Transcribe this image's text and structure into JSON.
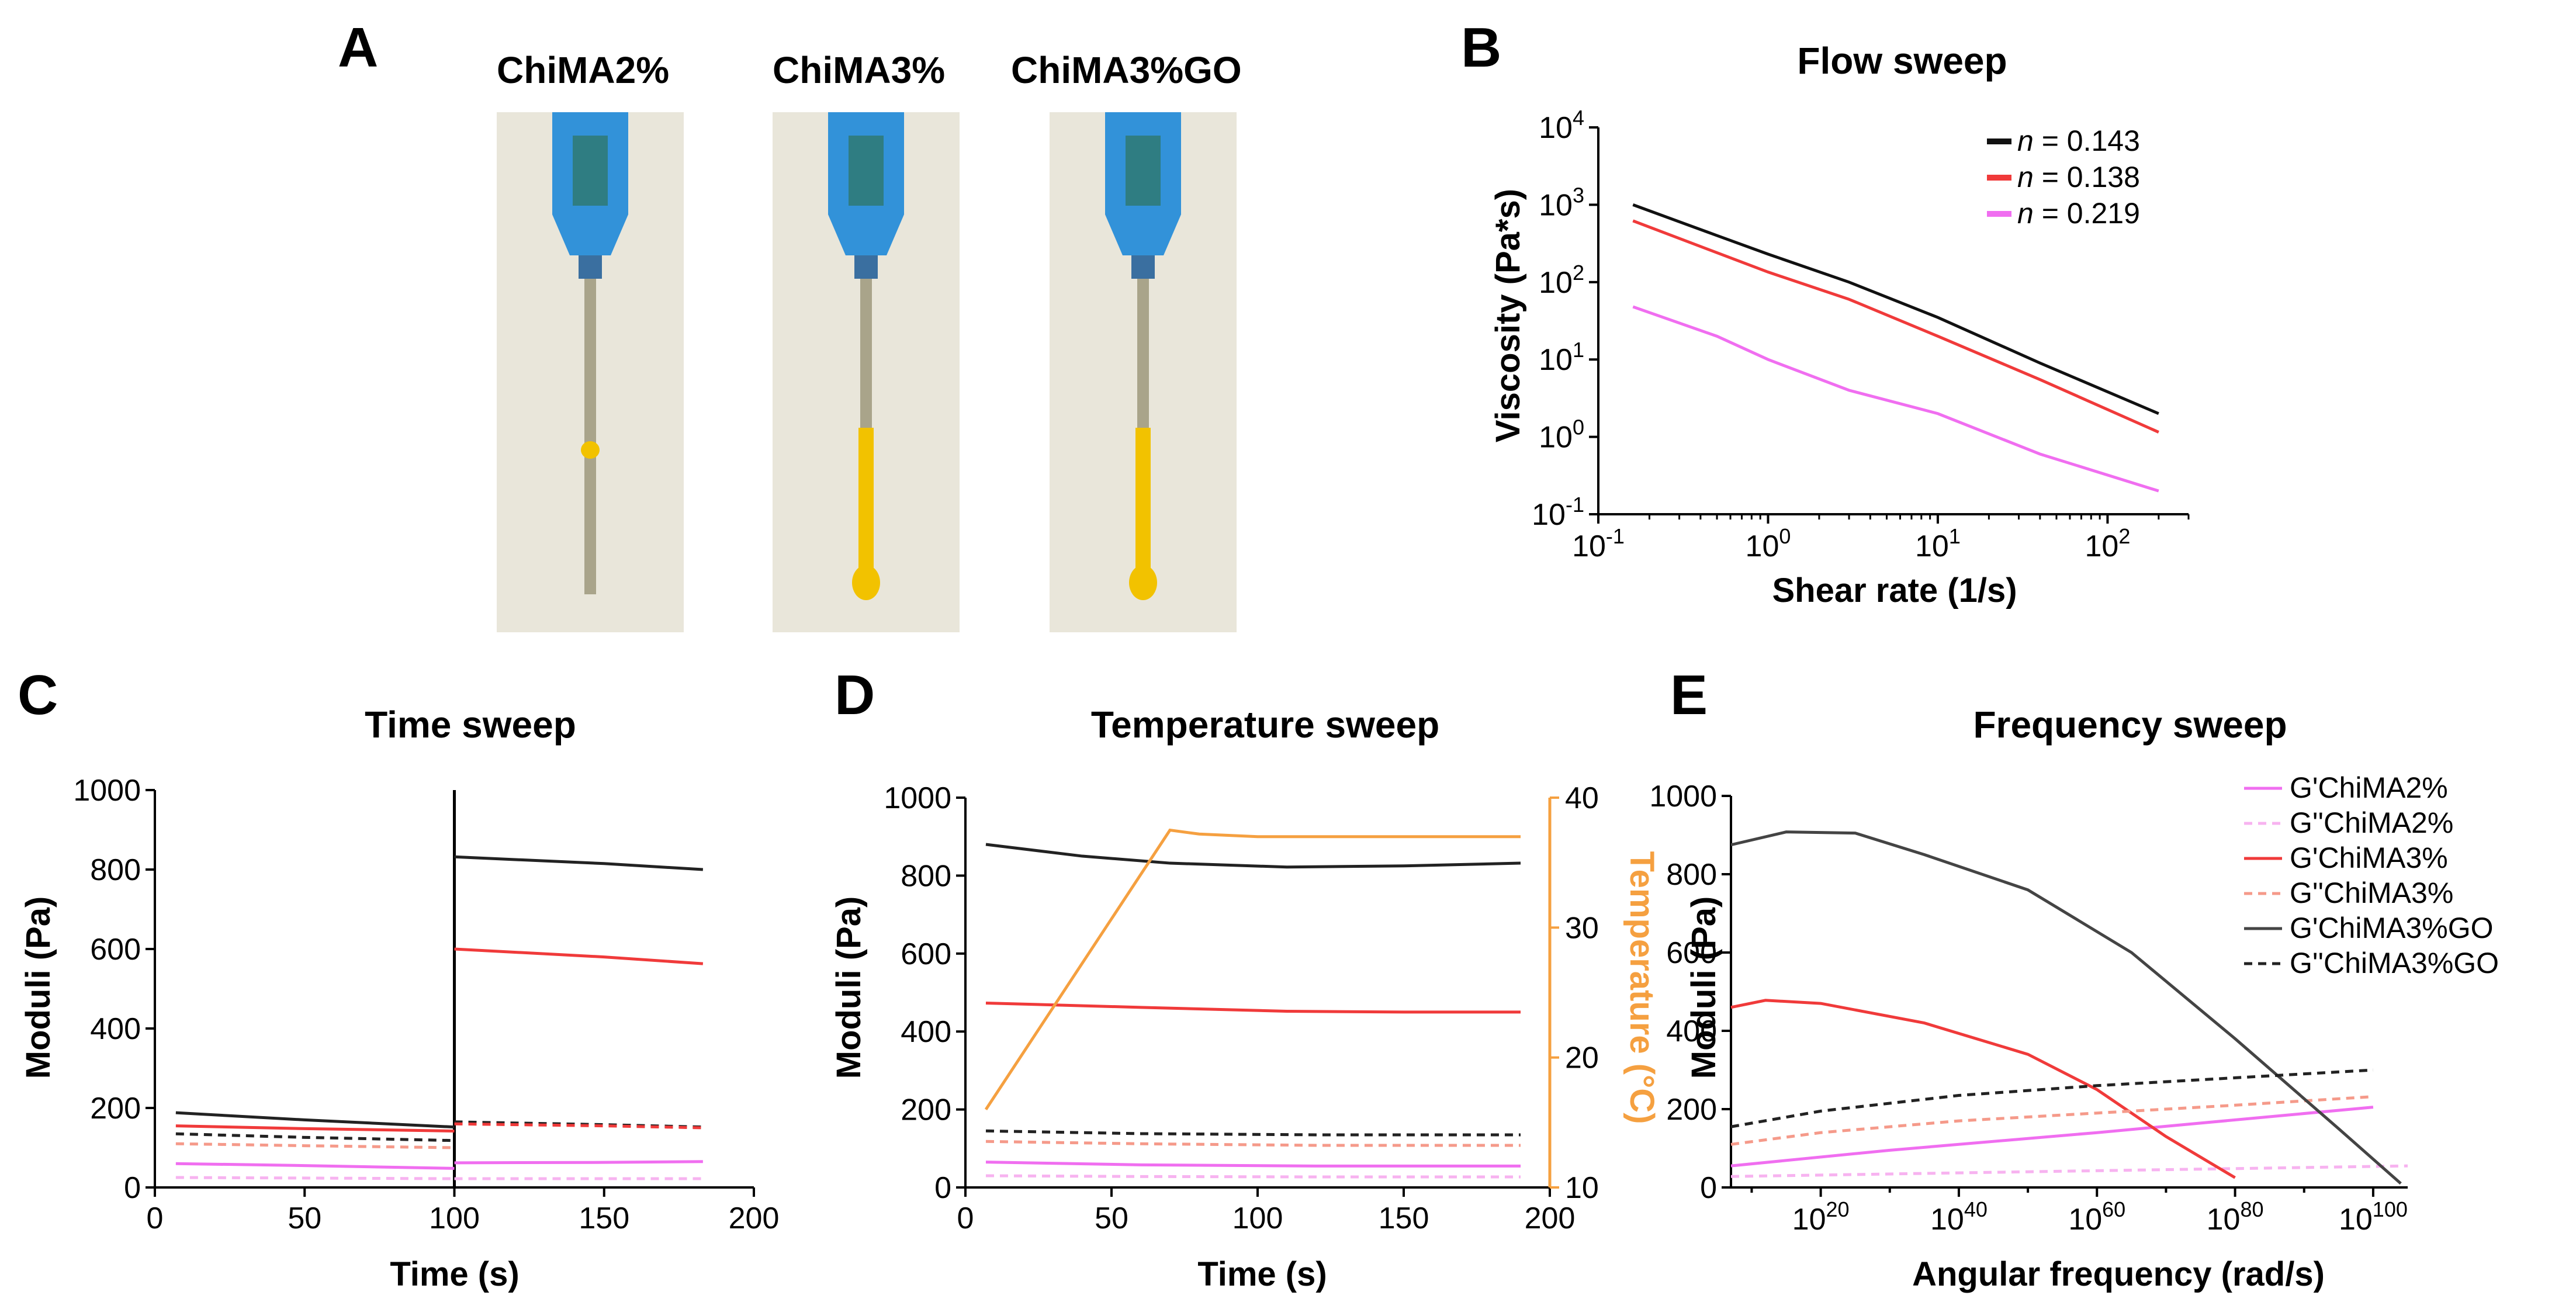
{
  "panels": {
    "A": "A",
    "B": "B",
    "C": "C",
    "D": "D",
    "E": "E"
  },
  "photos": {
    "labels": [
      "ChiMA2%",
      "ChiMA3%",
      "ChiMA3%GO"
    ],
    "gel_color": "#f2c200",
    "gel_amount": [
      0.02,
      0.95,
      0.95
    ],
    "syringe_color": "#1e88d8",
    "background_color": "#e9e6da"
  },
  "colors": {
    "black": "#222222",
    "red": "#f03a3a",
    "pink": "#f06ef0",
    "light_pink": "#f7b3f0",
    "light_red": "#f59a8a",
    "orange": "#f5a040"
  },
  "chart_data": [
    {
      "id": "B",
      "type": "line",
      "title": "Flow sweep",
      "xlabel": "Shear rate (1/s)",
      "ylabel": "Viscosity (Pa*s)",
      "x_scale": "log",
      "y_scale": "log",
      "xlim": [
        0.1,
        300
      ],
      "ylim": [
        0.1,
        10000
      ],
      "x_ticks": [
        {
          "base": "10",
          "exp": "-1"
        },
        {
          "base": "10",
          "exp": "0"
        },
        {
          "base": "10",
          "exp": "1"
        },
        {
          "base": "10",
          "exp": "2"
        }
      ],
      "y_ticks": [
        {
          "base": "10",
          "exp": "-1"
        },
        {
          "base": "10",
          "exp": "0"
        },
        {
          "base": "10",
          "exp": "1"
        },
        {
          "base": "10",
          "exp": "2"
        },
        {
          "base": "10",
          "exp": "3"
        },
        {
          "base": "10",
          "exp": "4"
        }
      ],
      "legend_position": "top-right",
      "series": [
        {
          "name": "n = 0.143",
          "name_parts": [
            "n",
            " = 0.143"
          ],
          "color": "#111111",
          "style": "solid",
          "x": [
            0.16,
            0.5,
            1,
            3,
            10,
            40,
            200
          ],
          "y": [
            1000,
            400,
            230,
            100,
            35,
            9,
            2
          ]
        },
        {
          "name": "n = 0.138",
          "name_parts": [
            "n",
            " = 0.138"
          ],
          "color": "#f03a3a",
          "style": "solid",
          "x": [
            0.16,
            0.5,
            1,
            3,
            10,
            40,
            200
          ],
          "y": [
            620,
            240,
            135,
            60,
            20,
            5.5,
            1.15
          ]
        },
        {
          "name": "n = 0.219",
          "name_parts": [
            "n",
            " = 0.219"
          ],
          "color": "#f06ef0",
          "style": "solid",
          "x": [
            0.16,
            0.5,
            1,
            3,
            10,
            40,
            200
          ],
          "y": [
            48,
            20,
            10,
            4,
            2,
            0.6,
            0.2
          ]
        }
      ]
    },
    {
      "id": "C",
      "type": "line",
      "title": "Time sweep",
      "xlabel": "Time (s)",
      "ylabel": "Moduli (Pa)",
      "xlim": [
        0,
        200
      ],
      "ylim": [
        0,
        1000
      ],
      "x_ticks": [
        0,
        50,
        100,
        150,
        200
      ],
      "y_ticks": [
        0,
        200,
        400,
        600,
        800,
        1000
      ],
      "vline_x": 100,
      "series": [
        {
          "color": "#222222",
          "style": "solid",
          "x": [
            7,
            50,
            100
          ],
          "y": [
            188,
            170,
            152
          ]
        },
        {
          "color": "#222222",
          "style": "solid",
          "x": [
            100,
            150,
            183
          ],
          "y": [
            832,
            815,
            800
          ]
        },
        {
          "color": "#f03a3a",
          "style": "solid",
          "x": [
            7,
            50,
            100
          ],
          "y": [
            155,
            148,
            142
          ]
        },
        {
          "color": "#f03a3a",
          "style": "solid",
          "x": [
            100,
            150,
            183
          ],
          "y": [
            600,
            580,
            563
          ]
        },
        {
          "color": "#222222",
          "style": "dashed",
          "x": [
            7,
            50,
            100
          ],
          "y": [
            135,
            126,
            118
          ]
        },
        {
          "color": "#222222",
          "style": "dashed",
          "x": [
            100,
            150,
            183
          ],
          "y": [
            165,
            158,
            152
          ]
        },
        {
          "color": "#f59a8a",
          "style": "dashed",
          "x": [
            7,
            50,
            100
          ],
          "y": [
            110,
            105,
            100
          ]
        },
        {
          "color": "#f03a3a",
          "style": "dashed",
          "x": [
            100,
            150,
            183
          ],
          "y": [
            160,
            155,
            150
          ]
        },
        {
          "color": "#f06ef0",
          "style": "solid",
          "x": [
            7,
            50,
            100
          ],
          "y": [
            60,
            55,
            48
          ]
        },
        {
          "color": "#f06ef0",
          "style": "solid",
          "x": [
            100,
            150,
            183
          ],
          "y": [
            62,
            63,
            65
          ]
        },
        {
          "color": "#f7b3f0",
          "style": "dashed",
          "x": [
            7,
            100
          ],
          "y": [
            25,
            22
          ]
        },
        {
          "color": "#f7b3f0",
          "style": "dashed",
          "x": [
            100,
            183
          ],
          "y": [
            22,
            22
          ]
        }
      ]
    },
    {
      "id": "D",
      "type": "line",
      "title": "Temperature sweep",
      "xlabel": "Time (s)",
      "ylabel": "Moduli (Pa)",
      "y2label": "Temperature (°C)",
      "xlim": [
        0,
        200
      ],
      "ylim": [
        0,
        1000
      ],
      "y2lim": [
        10,
        40
      ],
      "x_ticks": [
        0,
        50,
        100,
        150,
        200
      ],
      "y_ticks": [
        0,
        200,
        400,
        600,
        800,
        1000
      ],
      "y2_ticks": [
        10,
        20,
        30,
        40
      ],
      "y2_color": "#f5a040",
      "series": [
        {
          "color": "#222222",
          "style": "solid",
          "x": [
            7,
            40,
            70,
            110,
            150,
            190
          ],
          "y": [
            880,
            850,
            832,
            822,
            825,
            832
          ]
        },
        {
          "color": "#f03a3a",
          "style": "solid",
          "x": [
            7,
            60,
            110,
            150,
            190
          ],
          "y": [
            473,
            462,
            452,
            450,
            450
          ]
        },
        {
          "color": "#222222",
          "style": "dashed",
          "x": [
            7,
            60,
            120,
            190
          ],
          "y": [
            145,
            138,
            135,
            135
          ]
        },
        {
          "color": "#f59a8a",
          "style": "dashed",
          "x": [
            7,
            60,
            120,
            190
          ],
          "y": [
            118,
            112,
            108,
            108
          ]
        },
        {
          "color": "#f06ef0",
          "style": "solid",
          "x": [
            7,
            60,
            120,
            190
          ],
          "y": [
            65,
            58,
            55,
            55
          ]
        },
        {
          "color": "#f7b3f0",
          "style": "dashed",
          "x": [
            7,
            60,
            120,
            190
          ],
          "y": [
            30,
            28,
            27,
            27
          ]
        },
        {
          "color": "#f5a040",
          "style": "solid",
          "axis": "y2",
          "x": [
            7,
            70,
            80,
            100,
            190
          ],
          "y2": [
            16,
            37.5,
            37.2,
            37,
            37
          ]
        }
      ]
    },
    {
      "id": "E",
      "type": "line",
      "title": "Frequency sweep",
      "xlabel": "Angular frequency (rad/s)",
      "ylabel": "Moduli (Pa)",
      "x_scale": "log",
      "xlim_exp": [
        7,
        105
      ],
      "ylim": [
        0,
        1000
      ],
      "x_ticks": [
        {
          "base": "10",
          "exp": "20"
        },
        {
          "base": "10",
          "exp": "40"
        },
        {
          "base": "10",
          "exp": "60"
        },
        {
          "base": "10",
          "exp": "80"
        },
        {
          "base": "10",
          "exp": "100"
        }
      ],
      "y_ticks": [
        0,
        200,
        400,
        600,
        800,
        1000
      ],
      "legend_position": "top-right",
      "series": [
        {
          "name": "G'ChiMA2%",
          "color": "#f06ef0",
          "style": "solid",
          "x_exp": [
            7,
            30,
            60,
            100
          ],
          "y": [
            55,
            95,
            140,
            205
          ]
        },
        {
          "name": "G''ChiMA2%",
          "color": "#f7b3f0",
          "style": "dashed",
          "x_exp": [
            7,
            50,
            105
          ],
          "y": [
            28,
            40,
            55
          ]
        },
        {
          "name": "G'ChiMA3%",
          "color": "#f03a3a",
          "style": "solid",
          "x_exp": [
            7,
            12,
            20,
            35,
            50,
            60,
            70,
            80
          ],
          "y": [
            460,
            478,
            470,
            420,
            340,
            250,
            130,
            25
          ]
        },
        {
          "name": "G''ChiMA3%",
          "color": "#f59a8a",
          "style": "dashed",
          "x_exp": [
            7,
            20,
            40,
            60,
            80,
            100
          ],
          "y": [
            110,
            140,
            170,
            190,
            210,
            232
          ]
        },
        {
          "name": "G'ChiMA3%GO",
          "color": "#444444",
          "style": "solid",
          "x_exp": [
            7,
            15,
            25,
            35,
            50,
            65,
            80,
            95,
            104
          ],
          "y": [
            875,
            908,
            905,
            850,
            760,
            600,
            380,
            150,
            10
          ]
        },
        {
          "name": "G''ChiMA3%GO",
          "color": "#222222",
          "style": "dashed",
          "x_exp": [
            7,
            20,
            40,
            60,
            80,
            100
          ],
          "y": [
            155,
            195,
            235,
            260,
            280,
            300
          ]
        }
      ]
    }
  ]
}
